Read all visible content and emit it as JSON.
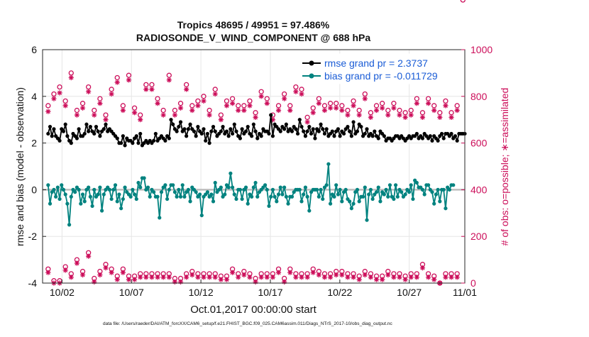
{
  "chart_data": {
    "type": "line",
    "title": "Tropics 48695 / 49951 = 97.486%",
    "subtitle": "RADIOSONDE_V_WIND_COMPONENT @ 688 hPa",
    "xlabel": "Oct.01,2017 00:00:00 start",
    "ylabel": "rmse and bias (model - observation)",
    "ylabel_right": "# of obs: o=possible; ∗=assimilated",
    "ylim": [
      -4,
      6
    ],
    "ylim_right": [
      0,
      1000
    ],
    "xlim": [
      0.6,
      31.0
    ],
    "grid": true,
    "legend_position": "top-right",
    "x_ticks": [
      {
        "value": 2,
        "label": "10/02"
      },
      {
        "value": 7,
        "label": "10/07"
      },
      {
        "value": 12,
        "label": "10/12"
      },
      {
        "value": 17,
        "label": "10/17"
      },
      {
        "value": 22,
        "label": "10/22"
      },
      {
        "value": 27,
        "label": "10/27"
      },
      {
        "value": 31,
        "label": "11/01"
      }
    ],
    "y_ticks": [
      {
        "value": -4,
        "label": "-4"
      },
      {
        "value": -2,
        "label": "-2"
      },
      {
        "value": 0,
        "label": "0"
      },
      {
        "value": 2,
        "label": "2"
      },
      {
        "value": 4,
        "label": "4"
      },
      {
        "value": 6,
        "label": "6"
      }
    ],
    "y_ticks_right": [
      {
        "value": 0,
        "label": "0"
      },
      {
        "value": 200,
        "label": "200"
      },
      {
        "value": 400,
        "label": "400"
      },
      {
        "value": 600,
        "label": "600"
      },
      {
        "value": 800,
        "label": "800"
      },
      {
        "value": 1000,
        "label": "1000"
      }
    ],
    "colors": {
      "rmse": "#000000",
      "bias": "#00827f",
      "obs": "#cc0e5a",
      "zero_line": "#bdbdbd"
    },
    "series": [
      {
        "name": "rmse grand pr = 2.3737",
        "axis": "left",
        "values": [
          2.4,
          2.7,
          2.3,
          2.6,
          2.3,
          2.2,
          2.1,
          2.6,
          2.5,
          2.8,
          2.3,
          2.1,
          2.0,
          2.4,
          2.3,
          2.2,
          2.6,
          2.3,
          2.3,
          2.4,
          2.8,
          2.5,
          2.7,
          2.5,
          2.4,
          2.7,
          2.5,
          2.3,
          2.5,
          2.6,
          2.8,
          2.5,
          2.6,
          2.5,
          2.4,
          2.3,
          2.2,
          2.0,
          2.0,
          2.3,
          1.9,
          2.2,
          2.1,
          2.1,
          2.0,
          2.2,
          2.3,
          2.0,
          2.4,
          1.9,
          2.0,
          2.1,
          2.0,
          2.1,
          2.0,
          2.1,
          2.4,
          2.1,
          2.2,
          2.3,
          2.2,
          2.1,
          2.3,
          2.2,
          3.0,
          2.8,
          2.6,
          2.5,
          2.7,
          2.9,
          2.5,
          2.6,
          2.3,
          2.6,
          2.8,
          2.6,
          2.5,
          2.3,
          2.7,
          2.5,
          2.4,
          2.6,
          2.1,
          2.4,
          2.0,
          2.5,
          2.7,
          2.5,
          2.3,
          2.4,
          2.5,
          2.7,
          2.4,
          2.5,
          2.3,
          2.6,
          2.4,
          2.8,
          2.5,
          2.3,
          2.2,
          2.6,
          2.4,
          2.5,
          2.7,
          2.4,
          2.3,
          2.8,
          2.5,
          2.2,
          2.4,
          2.3,
          2.6,
          2.5,
          2.5,
          2.4,
          3.2,
          2.3,
          2.8,
          2.7,
          2.6,
          2.5,
          2.7,
          2.6,
          2.8,
          2.5,
          2.6,
          2.5,
          2.7,
          2.6,
          2.4,
          3.0,
          2.7,
          2.5,
          2.3,
          2.5,
          2.7,
          2.4,
          2.6,
          2.2,
          2.6,
          2.5,
          2.8,
          2.6,
          2.4,
          2.6,
          2.3,
          2.4,
          2.5,
          2.3,
          2.5,
          2.6,
          2.3,
          2.5,
          2.4,
          2.6,
          2.7,
          2.5,
          2.3,
          2.9,
          2.4,
          2.5,
          2.8,
          2.7,
          2.3,
          2.4,
          2.6,
          2.3,
          2.4,
          2.3,
          2.5,
          2.3,
          2.2,
          2.5,
          2.4,
          2.3,
          2.1,
          2.2,
          2.2,
          2.1,
          2.2,
          2.3,
          2.3,
          2.2,
          2.3,
          2.2,
          2.1,
          2.2,
          2.3,
          2.2,
          2.3,
          2.3,
          2.4,
          2.2,
          2.3,
          2.2,
          2.4,
          2.3,
          2.2,
          2.3,
          2.1,
          2.3,
          2.2,
          2.1,
          2.3,
          2.4,
          2.2,
          2.4,
          2.4,
          2.3,
          2.4,
          2.2,
          2.3,
          2.1,
          2.4,
          2.4,
          2.4,
          2.4
        ]
      },
      {
        "name": "bias grand pr = -0.011729",
        "axis": "left",
        "values": [
          0.2,
          -0.6,
          -0.1,
          0.0,
          -0.3,
          0.1,
          -0.4,
          0.2,
          0.0,
          -0.2,
          -0.6,
          -1.5,
          -0.3,
          0.0,
          -0.1,
          0.1,
          0.0,
          -0.6,
          -0.2,
          -0.5,
          0.0,
          0.1,
          -0.3,
          -0.7,
          0.0,
          -0.3,
          -0.2,
          0.1,
          -0.9,
          -0.2,
          0.0,
          0.1,
          0.0,
          -0.4,
          0.0,
          0.2,
          -0.5,
          -0.2,
          -0.8,
          -0.4,
          0.1,
          -0.1,
          -0.2,
          -0.3,
          0.0,
          -0.2,
          -0.4,
          0.3,
          0.1,
          0.5,
          0.5,
          0.0,
          0.1,
          -0.3,
          0.0,
          -0.1,
          -0.3,
          -0.3,
          -1.2,
          -0.1,
          0.1,
          0.2,
          -0.4,
          0.0,
          0.2,
          0.2,
          -0.1,
          -0.3,
          0.0,
          -0.3,
          0.2,
          -0.3,
          -0.1,
          0.0,
          -0.5,
          0.1,
          0.0,
          -0.1,
          -0.3,
          -0.2,
          -1.1,
          -0.3,
          -0.2,
          -0.1,
          -0.3,
          -0.2,
          -0.5,
          0.3,
          -0.1,
          0.0,
          0.1,
          -0.3,
          -0.2,
          0.2,
          0.1,
          0.7,
          0.1,
          -0.2,
          -0.4,
          0.0,
          0.0,
          -0.4,
          0.0,
          0.1,
          -0.6,
          -0.2,
          -0.3,
          0.1,
          0.3,
          -0.3,
          -0.1,
          0.0,
          0.1,
          0.2,
          0.0,
          -0.7,
          -0.3,
          0.0,
          -0.3,
          -0.5,
          -0.2,
          0.1,
          -0.2,
          0.1,
          -0.3,
          -0.6,
          -0.3,
          -0.3,
          -0.1,
          0.0,
          0.0,
          0.0,
          -0.5,
          -0.2,
          0.1,
          -0.3,
          -0.9,
          -0.1,
          0.0,
          0.0,
          0.0,
          -0.3,
          0.0,
          -0.4,
          0.1,
          0.2,
          1.1,
          -0.6,
          -0.2,
          -0.3,
          0.2,
          -0.2,
          0.0,
          -0.5,
          -0.1,
          0.0,
          -0.4,
          -0.5,
          -0.8,
          -0.6,
          -0.1,
          0.0,
          -0.5,
          -0.3,
          -0.3,
          0.1,
          -1.3,
          -0.2,
          0.0,
          -0.4,
          -0.2,
          -0.1,
          0.1,
          -0.5,
          -0.1,
          -0.2,
          0.0,
          -0.3,
          0.2,
          -0.3,
          -0.4,
          0.2,
          -0.3,
          0.0,
          -0.1,
          -0.3,
          -0.2,
          0.0,
          -0.1,
          0.2,
          -0.4,
          0.4,
          0.3,
          0.1,
          0.1,
          0.0,
          -0.2,
          0.2,
          0.2,
          0.0,
          -0.1,
          -0.6,
          -0.2,
          0.0,
          -0.5,
          0.0,
          0.0,
          -0.8,
          0.1,
          0.0,
          0.2,
          0.2
        ]
      },
      {
        "name": "possible",
        "axis": "right",
        "marker": "o",
        "values": [
          760,
          710,
          860,
          810,
          770,
          720,
          840,
          860,
          760,
          780,
          820,
          860,
          900,
          870,
          750,
          740,
          830,
          710,
          770,
          780,
          760,
          840,
          860,
          740,
          740,
          740,
          760,
          790,
          880,
          870,
          720,
          850,
          850,
          830,
          830,
          830,
          880,
          760,
          770,
          760,
          730,
          880,
          890,
          810,
          730,
          750,
          780,
          850,
          720,
          730,
          720,
          850,
          850,
          860,
          850,
          800,
          780,
          790,
          760,
          740,
          740,
          780,
          740,
          890,
          780,
          770,
          740,
          720,
          710,
          770,
          800,
          800,
          850,
          850,
          840,
          760,
          780,
          800,
          780,
          780,
          830,
          800,
          840,
          720,
          740,
          780,
          750,
          830,
          790,
          740,
          720,
          830,
          760,
          780,
          770,
          860,
          790,
          730,
          780,
          760,
          730,
          780,
          760,
          780,
          740,
          780,
          790,
          780,
          730,
          780,
          780,
          820,
          800,
          770,
          790,
          770,
          740,
          720,
          720,
          760,
          760,
          770,
          790,
          810,
          780,
          720,
          760,
          730,
          760,
          840,
          720,
          760,
          830,
          810,
          750,
          710,
          780,
          760,
          750,
          780,
          790,
          790,
          810,
          800,
          760,
          700,
          720,
          770,
          760,
          760,
          770,
          820,
          780,
          760,
          800,
          720,
          740,
          790,
          850,
          780,
          800,
          750,
          740,
          810,
          840,
          810,
          760,
          760,
          730,
          780,
          790,
          760,
          780,
          760,
          770,
          740,
          720,
          740,
          810,
          790,
          770,
          740,
          730,
          740,
          800,
          770,
          730,
          790,
          750,
          740,
          730,
          790,
          790,
          800,
          770,
          730,
          800,
          780,
          790,
          720,
          810,
          760,
          780,
          790,
          730,
          740,
          740,
          780,
          760,
          780,
          730,
          760,
          760,
          760
        ]
      },
      {
        "name": "assimilated",
        "axis": "right",
        "marker": "*",
        "values": [
          735,
          690,
          840,
          790,
          750,
          700,
          815,
          840,
          740,
          760,
          800,
          840,
          880,
          850,
          730,
          720,
          810,
          690,
          750,
          760,
          740,
          820,
          840,
          720,
          720,
          720,
          740,
          770,
          860,
          850,
          700,
          830,
          830,
          810,
          810,
          810,
          860,
          740,
          750,
          740,
          710,
          860,
          870,
          790,
          710,
          730,
          760,
          830,
          700,
          710,
          700,
          830,
          830,
          840,
          830,
          780,
          760,
          770,
          740,
          720,
          720,
          760,
          720,
          870,
          760,
          750,
          720,
          700,
          690,
          750,
          780,
          780,
          830,
          830,
          820,
          740,
          760,
          780,
          760,
          760,
          810,
          780,
          820,
          700,
          720,
          760,
          730,
          810,
          770,
          720,
          700,
          810,
          740,
          760,
          750,
          840,
          770,
          710,
          760,
          740,
          710,
          760,
          740,
          760,
          720,
          760,
          770,
          760,
          710,
          760,
          760,
          800,
          780,
          750,
          770,
          750,
          720,
          700,
          700,
          740,
          740,
          750,
          770,
          790,
          760,
          700,
          740,
          710,
          740,
          820,
          700,
          740,
          810,
          790,
          730,
          690,
          760,
          740,
          730,
          760,
          770,
          770,
          790,
          780,
          740,
          680,
          700,
          750,
          740,
          740,
          750,
          800,
          760,
          740,
          780,
          700,
          720,
          770,
          830,
          760,
          780,
          730,
          720,
          790,
          820,
          790,
          740,
          740,
          710,
          760,
          770,
          740,
          760,
          740,
          750,
          720,
          700,
          720,
          790,
          770,
          750,
          720,
          710,
          720,
          780,
          750,
          710,
          770,
          730,
          720,
          710,
          770,
          770,
          780,
          750,
          710,
          780,
          760,
          770,
          700,
          790,
          740,
          760,
          770,
          710,
          720,
          720,
          760,
          740,
          760,
          710,
          740,
          740,
          740
        ]
      }
    ],
    "annotations": [
      "data file: /Users/raeder/DAI/ATM_forcXX/CAM6_setup/f.e21.FHIST_BGC.f09_025.CAM6assim.011/Diags_NTrS_2017-10/obs_diag_output.nc"
    ]
  },
  "night_obs": {
    "possible": [
      60,
      40,
      50,
      10,
      30,
      40,
      10,
      20,
      50,
      70,
      30,
      20,
      40,
      40,
      70,
      100,
      120,
      90,
      50,
      40,
      80,
      130,
      110,
      40,
      20,
      60,
      50,
      50,
      20,
      80,
      80,
      50,
      40,
      60,
      70,
      40,
      30,
      40,
      10,
      60,
      40,
      50,
      30,
      50,
      60,
      30,
      50,
      60,
      40,
      30,
      60,
      40,
      40,
      30,
      40,
      60,
      30,
      40,
      30,
      50,
      40,
      20,
      40,
      40,
      60,
      40,
      20,
      40,
      20,
      20,
      50,
      30,
      40,
      30,
      50,
      50,
      30,
      40,
      40,
      60,
      30,
      40,
      30,
      50,
      40,
      20,
      50,
      40,
      40,
      60,
      30,
      40,
      50,
      30,
      40,
      40,
      60,
      40,
      20,
      40,
      40,
      20,
      50,
      40,
      60,
      40,
      40,
      60,
      20,
      40,
      30,
      40,
      50,
      40,
      40,
      20,
      60,
      40,
      40,
      30,
      60,
      40,
      50,
      20,
      40,
      40,
      60,
      40,
      30,
      40,
      60,
      50,
      40,
      40,
      20,
      40,
      30,
      50,
      60,
      50,
      30,
      50,
      40,
      20,
      40,
      30,
      70,
      40,
      40,
      30,
      50,
      40,
      20,
      50,
      40,
      60,
      40,
      40,
      60,
      40,
      40,
      50,
      30,
      40,
      30,
      50,
      40,
      20,
      40,
      40,
      60,
      30,
      40,
      50,
      30,
      40,
      40,
      50,
      40,
      30,
      40,
      60,
      40,
      40,
      20,
      40,
      30,
      50,
      60,
      40,
      40,
      20,
      40,
      50,
      30,
      80,
      40,
      40,
      40,
      60,
      40,
      30,
      40,
      60,
      0,
      40,
      30,
      40,
      50,
      30,
      40,
      20,
      60,
      40,
      40,
      50
    ]
  }
}
